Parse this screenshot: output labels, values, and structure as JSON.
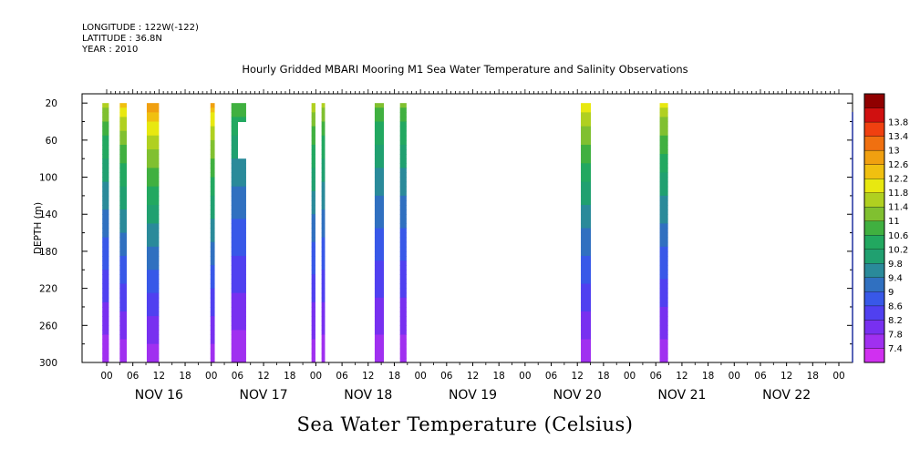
{
  "header": {
    "longitude": "LONGITUDE : 122W(-122)",
    "latitude": "LATITUDE : 36.8N",
    "year": "YEAR : 2010"
  },
  "chart_data": {
    "type": "heatmap",
    "title": "Hourly Gridded MBARI Mooring M1 Sea Water Temperature and Salinity Observations",
    "bottom_title": "Sea Water Temperature (Celsius)",
    "ylabel": "DEPTH (m)",
    "ylim": [
      300,
      10
    ],
    "y_ticks": [
      20,
      60,
      100,
      140,
      180,
      220,
      260,
      300
    ],
    "x_unit": "hours",
    "x_range_hours": [
      0,
      168
    ],
    "x_start_day": "NOV 16",
    "x_tick_labels": [
      "00",
      "06",
      "12",
      "18"
    ],
    "day_labels": [
      "NOV 16",
      "NOV 17",
      "NOV 18",
      "NOV 19",
      "NOV 20",
      "NOV 21",
      "NOV 22"
    ],
    "colorbar": {
      "levels": [
        7.4,
        7.8,
        8.2,
        8.6,
        9,
        9.4,
        9.8,
        10.2,
        10.6,
        11,
        11.4,
        11.8,
        12.2,
        12.6,
        13,
        13.4,
        13.8
      ],
      "colors": [
        "#d030f0",
        "#a030f0",
        "#7830f0",
        "#5040f0",
        "#3858e8",
        "#3070c0",
        "#2a8a9a",
        "#20a070",
        "#22a860",
        "#40b040",
        "#80c030",
        "#b0d020",
        "#e8e810",
        "#f0c010",
        "#f0a010",
        "#f07010",
        "#f04010",
        "#d01010",
        "#900000"
      ]
    },
    "series": [
      {
        "x_start": -1,
        "x_end": 0.5,
        "surface_temp": 11.6,
        "depth_max": 300
      },
      {
        "x_start": 3.0,
        "x_end": 4.6,
        "surface_temp": 12.4,
        "depth_max": 300
      },
      {
        "x_start": 9.2,
        "x_end": 12.0,
        "surface_temp": 13.1,
        "depth_max": 300
      },
      {
        "x_start": 23.8,
        "x_end": 24.8,
        "surface_temp": 12.8,
        "depth_max": 300
      },
      {
        "x_start": 28.6,
        "x_end": 32.0,
        "surface_temp": 11.0,
        "depth_max": 300,
        "gap_depth": [
          40,
          80
        ]
      },
      {
        "x_start": 47.0,
        "x_end": 47.9,
        "surface_temp": 11.8,
        "depth_max": 300
      },
      {
        "x_start": 49.3,
        "x_end": 50.1,
        "surface_temp": 11.6,
        "depth_max": 300
      },
      {
        "x_start": 61.5,
        "x_end": 63.6,
        "surface_temp": 11.2,
        "depth_max": 300
      },
      {
        "x_start": 67.3,
        "x_end": 68.8,
        "surface_temp": 11.2,
        "depth_max": 300
      },
      {
        "x_start": 108.8,
        "x_end": 111.1,
        "surface_temp": 12.3,
        "depth_max": 300
      },
      {
        "x_start": 126.9,
        "x_end": 128.8,
        "surface_temp": 12.0,
        "depth_max": 300
      }
    ]
  }
}
